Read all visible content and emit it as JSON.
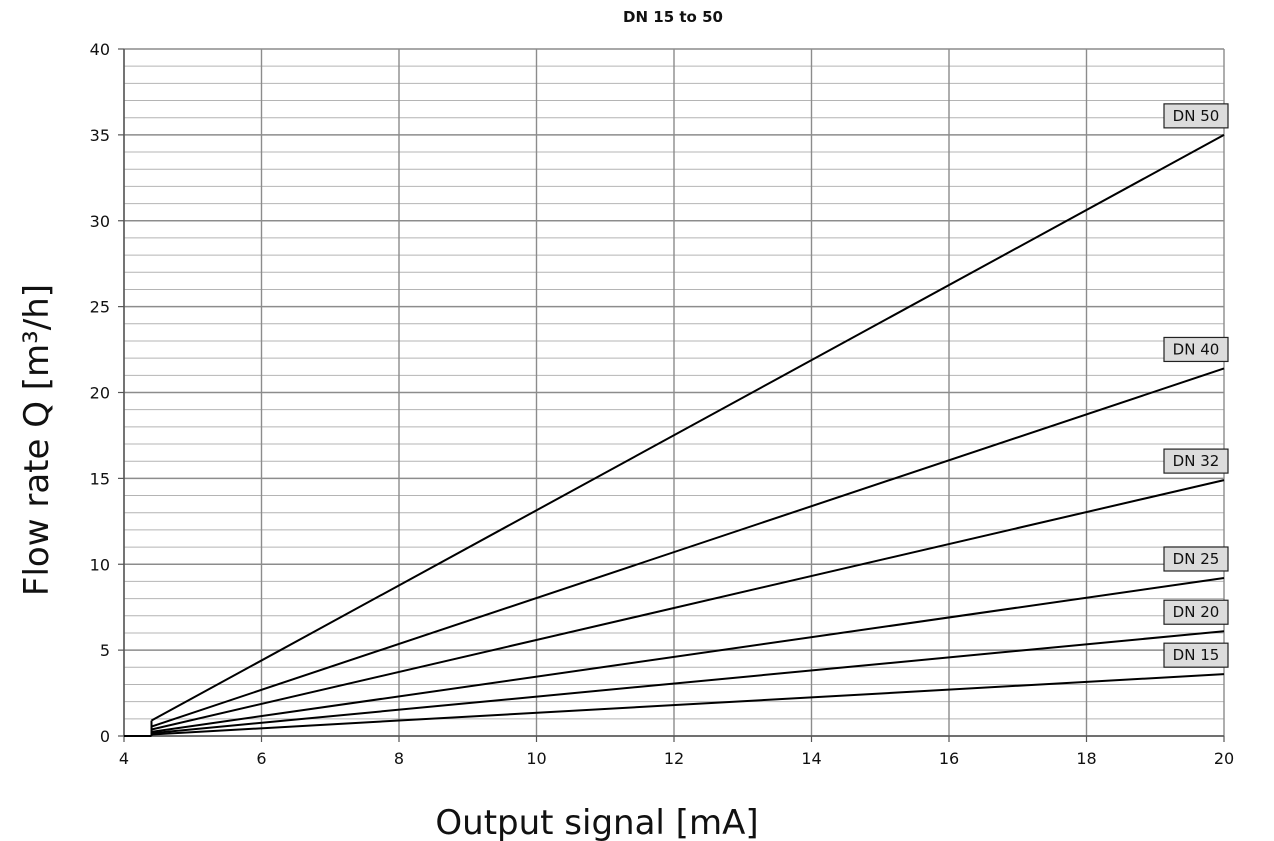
{
  "chart_data": {
    "type": "line",
    "title": "DN 15 to 50",
    "xlabel": "Output signal  [mA]",
    "ylabel": "Flow rate   Q [m³/h]",
    "xlim": [
      4,
      20
    ],
    "ylim": [
      0,
      40
    ],
    "xticks": [
      "4",
      "6",
      "8",
      "10",
      "12",
      "14",
      "16",
      "18",
      "20"
    ],
    "yticks": [
      "0",
      "5",
      "10",
      "15",
      "20",
      "25",
      "30",
      "35",
      "40"
    ],
    "grid": true,
    "colors": {
      "line": "#000000",
      "major_grid": "#8c8c8c",
      "minor_grid": "#b4b4b4",
      "label_fill": "#dcdcdc"
    },
    "series": [
      {
        "name": "DN 50",
        "x": [
          4.4,
          20
        ],
        "y": [
          0.9,
          35.0
        ]
      },
      {
        "name": "DN 40",
        "x": [
          4.4,
          20
        ],
        "y": [
          0.55,
          21.4
        ]
      },
      {
        "name": "DN 32",
        "x": [
          4.4,
          20
        ],
        "y": [
          0.38,
          14.9
        ]
      },
      {
        "name": "DN 25",
        "x": [
          4.4,
          20
        ],
        "y": [
          0.24,
          9.2
        ]
      },
      {
        "name": "DN 20",
        "x": [
          4.4,
          20
        ],
        "y": [
          0.16,
          6.1
        ]
      },
      {
        "name": "DN 15",
        "x": [
          4.4,
          20
        ],
        "y": [
          0.09,
          3.6
        ]
      }
    ]
  }
}
